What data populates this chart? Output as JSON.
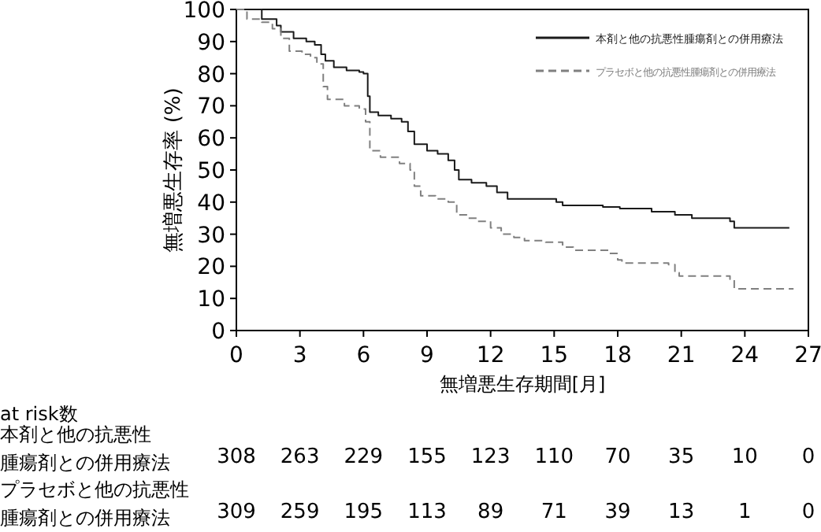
{
  "chart_data": {
    "type": "step",
    "xlabel": "無増悪生存期間[月]",
    "ylabel": "無増悪生存率 (%)",
    "xlim": [
      0,
      27
    ],
    "xticks": [
      0,
      3,
      6,
      9,
      12,
      15,
      18,
      21,
      24,
      27
    ],
    "ylim": [
      0,
      100
    ],
    "yticks": [
      0,
      10,
      20,
      30,
      40,
      50,
      60,
      70,
      80,
      90,
      100
    ],
    "legend": "top right",
    "grid": false,
    "series": [
      {
        "name": "本剤と他の抗悪性腫瘍剤との併用療法",
        "color": "#1a1a1a",
        "line_style": "solid",
        "x": [
          0,
          1.2,
          1.9,
          2.1,
          2.7,
          3.3,
          3.7,
          4.0,
          4.2,
          4.6,
          5.2,
          5.8,
          6.0,
          6.2,
          6.3,
          6.7,
          7.3,
          7.8,
          8.1,
          8.4,
          9.0,
          9.5,
          10.0,
          10.3,
          10.5,
          11.1,
          11.8,
          12.3,
          12.8,
          15.1,
          15.4,
          17.3,
          18.1,
          19.6,
          20.7,
          21.5,
          23.3,
          23.5,
          26.1
        ],
        "values": [
          100,
          97,
          95,
          93,
          91,
          90,
          89,
          86,
          84,
          82,
          81,
          80.5,
          80,
          73,
          68,
          67,
          66,
          65,
          62,
          58,
          56,
          55,
          53,
          50,
          47,
          46,
          45,
          43,
          41,
          40,
          39,
          38.5,
          38,
          37,
          36,
          35,
          34,
          32,
          32
        ]
      },
      {
        "name": "プラセボと他の抗悪性腫瘍剤との併用療法",
        "color": "#808080",
        "line_style": "dashed",
        "x": [
          0,
          0.5,
          1.2,
          1.7,
          2.1,
          2.5,
          3.1,
          3.5,
          3.8,
          4.1,
          4.3,
          5.1,
          5.8,
          6.1,
          6.3,
          6.8,
          7.7,
          8.2,
          8.4,
          8.7,
          9.4,
          10.0,
          10.4,
          10.9,
          11.4,
          12.0,
          12.5,
          13.1,
          13.6,
          14.6,
          15.4,
          15.9,
          17.6,
          18.0,
          18.2,
          20.4,
          20.7,
          20.9,
          23.3,
          23.5,
          26.3
        ],
        "values": [
          100,
          97,
          96,
          94,
          91,
          87,
          86,
          85,
          83,
          76,
          72,
          70,
          69,
          65,
          56,
          54,
          52,
          50,
          45,
          42,
          41,
          40,
          36,
          35,
          34,
          32,
          30,
          29,
          28,
          27.5,
          26,
          25,
          24,
          22,
          21,
          20.5,
          18,
          17,
          16,
          13,
          13
        ]
      }
    ],
    "annotations": [
      "at risk数",
      "本剤と他の抗悪性腫瘍剤との併用療法",
      "308",
      "263",
      "229",
      "155",
      "123",
      "110",
      "70",
      "35",
      "10",
      "0",
      "プラセボと他の抗悪性腫瘍剤との併用療法",
      "309",
      "259",
      "195",
      "113",
      "89",
      "71",
      "39",
      "13",
      "1",
      "0"
    ]
  }
}
